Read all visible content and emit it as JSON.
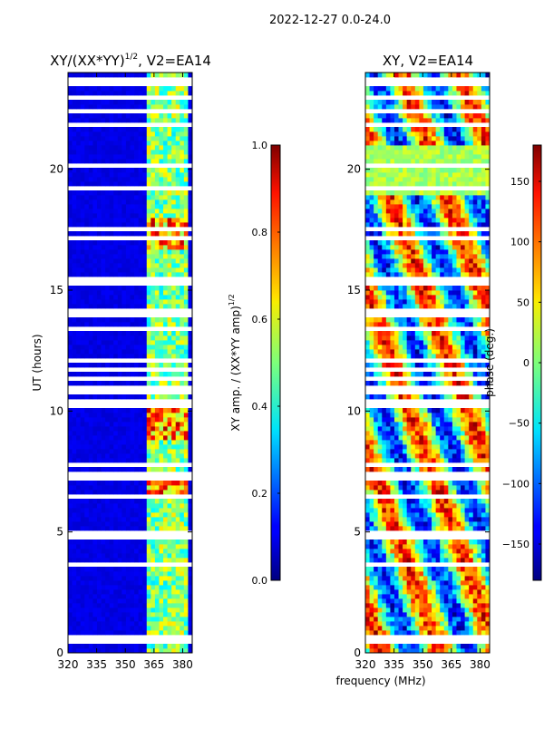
{
  "header": {
    "date_range": "2022-12-27 0.0-24.0"
  },
  "chart_data": [
    {
      "type": "heatmap",
      "title": "XY/(XX*YY)",
      "title_superscript": "1/2",
      "title_suffix": ", V2=EA14",
      "xlabel": "",
      "ylabel": "UT (hours)",
      "xlim": [
        320,
        385
      ],
      "ylim": [
        0,
        24
      ],
      "x_ticks": [
        320,
        335,
        350,
        365,
        380
      ],
      "y_ticks": [
        0,
        5,
        10,
        15,
        20
      ],
      "bright_channel_band_mhz": [
        361,
        383
      ],
      "colorbar": {
        "label": "XY amp. / (XX*YY amp)",
        "label_superscript": "1/2",
        "range": [
          0.0,
          1.0
        ],
        "ticks": [
          "0.0",
          "0.2",
          "0.4",
          "0.6",
          "0.8",
          "1.0"
        ],
        "colormap": "jet"
      }
    },
    {
      "type": "heatmap",
      "title": "XY, V2=EA14",
      "xlabel": "frequency (MHz)",
      "ylabel": "",
      "xlim": [
        320,
        385
      ],
      "ylim": [
        0,
        24
      ],
      "x_ticks": [
        320,
        335,
        350,
        365,
        380
      ],
      "y_ticks": [
        0,
        5,
        10,
        15,
        20
      ],
      "colorbar": {
        "label": "phase (deg.)",
        "range": [
          -180,
          180
        ],
        "ticks": [
          "150",
          "100",
          "50",
          "0",
          "−50",
          "−100",
          "−150"
        ],
        "colormap": "jet"
      }
    }
  ]
}
